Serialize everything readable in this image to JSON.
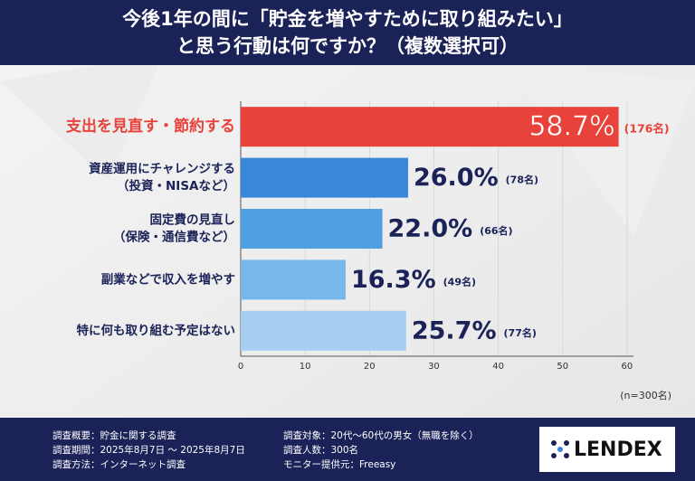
{
  "chart_data": {
    "type": "barh",
    "title": [
      "今後1年の間に「貯金を増やすために取り組みたい」",
      "と思う行動は何ですか？（複数選択可）"
    ],
    "categories": [
      [
        "支出を見直す・節約する"
      ],
      [
        "資産運用にチャレンジする",
        "（投資・NISAなど）"
      ],
      [
        "固定費の見直し",
        "（保険・通信費など）"
      ],
      [
        "副業などで収入を増やす"
      ],
      [
        "特に何も取り組む予定はない"
      ]
    ],
    "values": [
      58.7,
      26.0,
      22.0,
      16.3,
      25.7
    ],
    "value_labels": [
      "58.7%",
      "26.0%",
      "22.0%",
      "16.3%",
      "25.7%"
    ],
    "count_labels": [
      "(176名)",
      "(78名)",
      "(66名)",
      "(49名)",
      "(77名)"
    ],
    "colors": [
      "#e8423a",
      "#3a86d8",
      "#4f9fe2",
      "#78b7ea",
      "#a8cff2"
    ],
    "xlim": [
      0,
      61
    ],
    "xticks": [
      0,
      10,
      20,
      30,
      40,
      50,
      60
    ],
    "grid": true,
    "note": "(n=300名)"
  },
  "footer": {
    "left": [
      "調査概要：貯金に関する調査",
      "調査期間：2025年8月7日 ～ 2025年8月7日",
      "調査方法：インターネット調査"
    ],
    "right": [
      "調査対象：20代～60代の男女（無職を除く）",
      "調査人数：300名",
      "モニター提供元：Freeasy"
    ],
    "logo": "LENDEX"
  }
}
